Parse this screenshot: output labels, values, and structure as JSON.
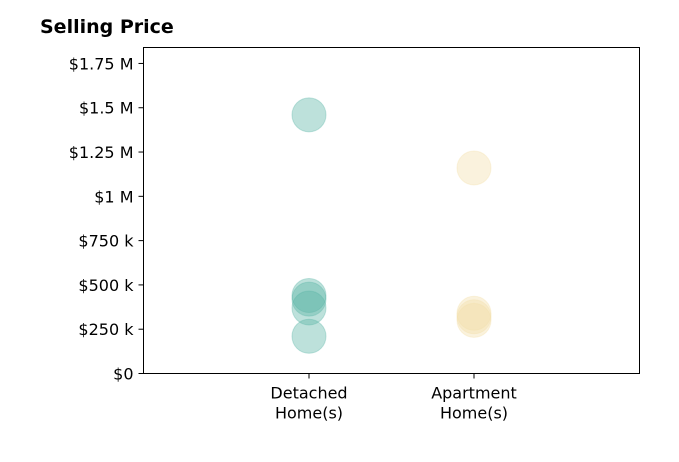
{
  "chart_data": {
    "type": "scatter",
    "title": "Selling Price",
    "xlabel": "",
    "ylabel": "",
    "categories": [
      "Detached\nHome(s)",
      "Apartment\nHome(s)"
    ],
    "ylim": [
      0,
      1840000
    ],
    "yticks": [
      0,
      250000,
      500000,
      750000,
      1000000,
      1250000,
      1500000,
      1750000
    ],
    "ytick_labels": [
      "$0",
      "$250 k",
      "$500 k",
      "$750 k",
      "$1 M",
      "$1.25 M",
      "$1.5 M",
      "$1.75 M"
    ],
    "grid": false,
    "legend": "none",
    "series": [
      {
        "category_index": 0,
        "color": "#5ab4a6",
        "values": [
          1460000,
          440000,
          420000,
          370000,
          210000
        ]
      },
      {
        "category_index": 1,
        "color": "#f3dfaa",
        "values": [
          1160000,
          340000,
          320000,
          300000
        ]
      }
    ]
  }
}
